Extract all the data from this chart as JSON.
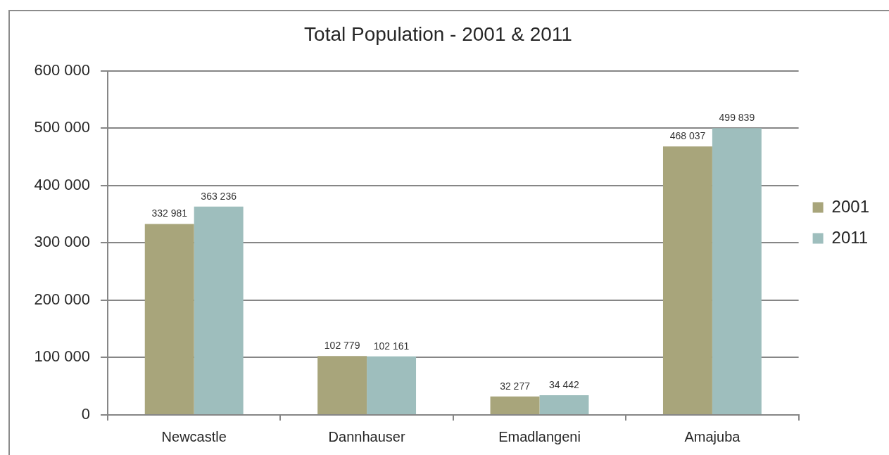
{
  "chart_data": {
    "type": "bar",
    "title": "Total Population - 2001 & 2011",
    "categories": [
      "Newcastle",
      "Dannhauser",
      "Emadlangeni",
      "Amajuba"
    ],
    "series": [
      {
        "name": "2001",
        "color": "#a8a57b",
        "values": [
          332981,
          102779,
          32277,
          468037
        ],
        "value_labels": [
          "332 981",
          "102 779",
          "32 277",
          "468 037"
        ]
      },
      {
        "name": "2011",
        "color": "#9ebebd",
        "values": [
          363236,
          102161,
          34442,
          499839
        ],
        "value_labels": [
          "363 236",
          "102 161",
          "34 442",
          "499 839"
        ]
      }
    ],
    "ylim": [
      0,
      600000
    ],
    "yticks": [
      0,
      {
        "value": 100000,
        "label": "100 000"
      },
      {
        "value": 200000,
        "label": "200 000"
      },
      {
        "value": 300000,
        "label": "300 000"
      },
      {
        "value": 400000,
        "label": "400 000"
      },
      {
        "value": 500000,
        "label": "500 000"
      },
      {
        "value": 600000,
        "label": "600 000"
      }
    ],
    "grid": "y",
    "legend": "right"
  }
}
